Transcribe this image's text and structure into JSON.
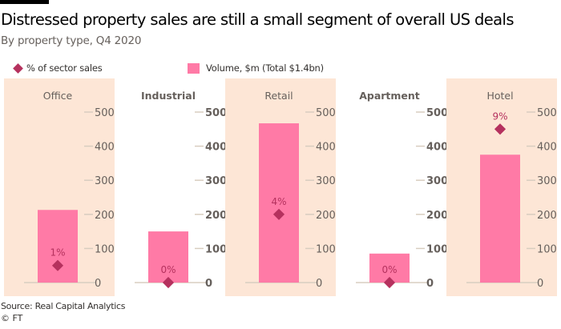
{
  "title": "Distressed property sales are still a small segment of overall US deals",
  "subtitle": "By property type, Q4 2020",
  "legend": {
    "pct": "% of sector sales",
    "volume": "Volume, $m (Total $1.4bn)"
  },
  "source": "Source: Real Capital Analytics",
  "copyright": "© FT",
  "colors": {
    "panel": "#fde6d6",
    "bar": "#ff7aa6",
    "diamond": "#b5315e",
    "axis": "#d8cdc0",
    "text": "#66605c"
  },
  "chart_data": {
    "type": "bar",
    "title": "Distressed property sales are still a small segment of overall US deals",
    "subtitle": "By property type, Q4 2020",
    "categories": [
      "Office",
      "Industrial",
      "Retail",
      "Apartment",
      "Hotel"
    ],
    "series": [
      {
        "name": "Volume, $m (Total $1.4bn)",
        "type": "bar",
        "values": [
          213,
          150,
          467,
          85,
          375
        ]
      },
      {
        "name": "% of sector sales",
        "type": "scatter",
        "values": [
          1,
          0,
          4,
          0,
          9
        ],
        "labels": [
          "1%",
          "0%",
          "4%",
          "0%",
          "9%"
        ]
      }
    ],
    "yticks": [
      0,
      100,
      200,
      300,
      400,
      500
    ],
    "ylim": [
      0,
      500
    ],
    "pct_scale_per_volume": 50
  }
}
